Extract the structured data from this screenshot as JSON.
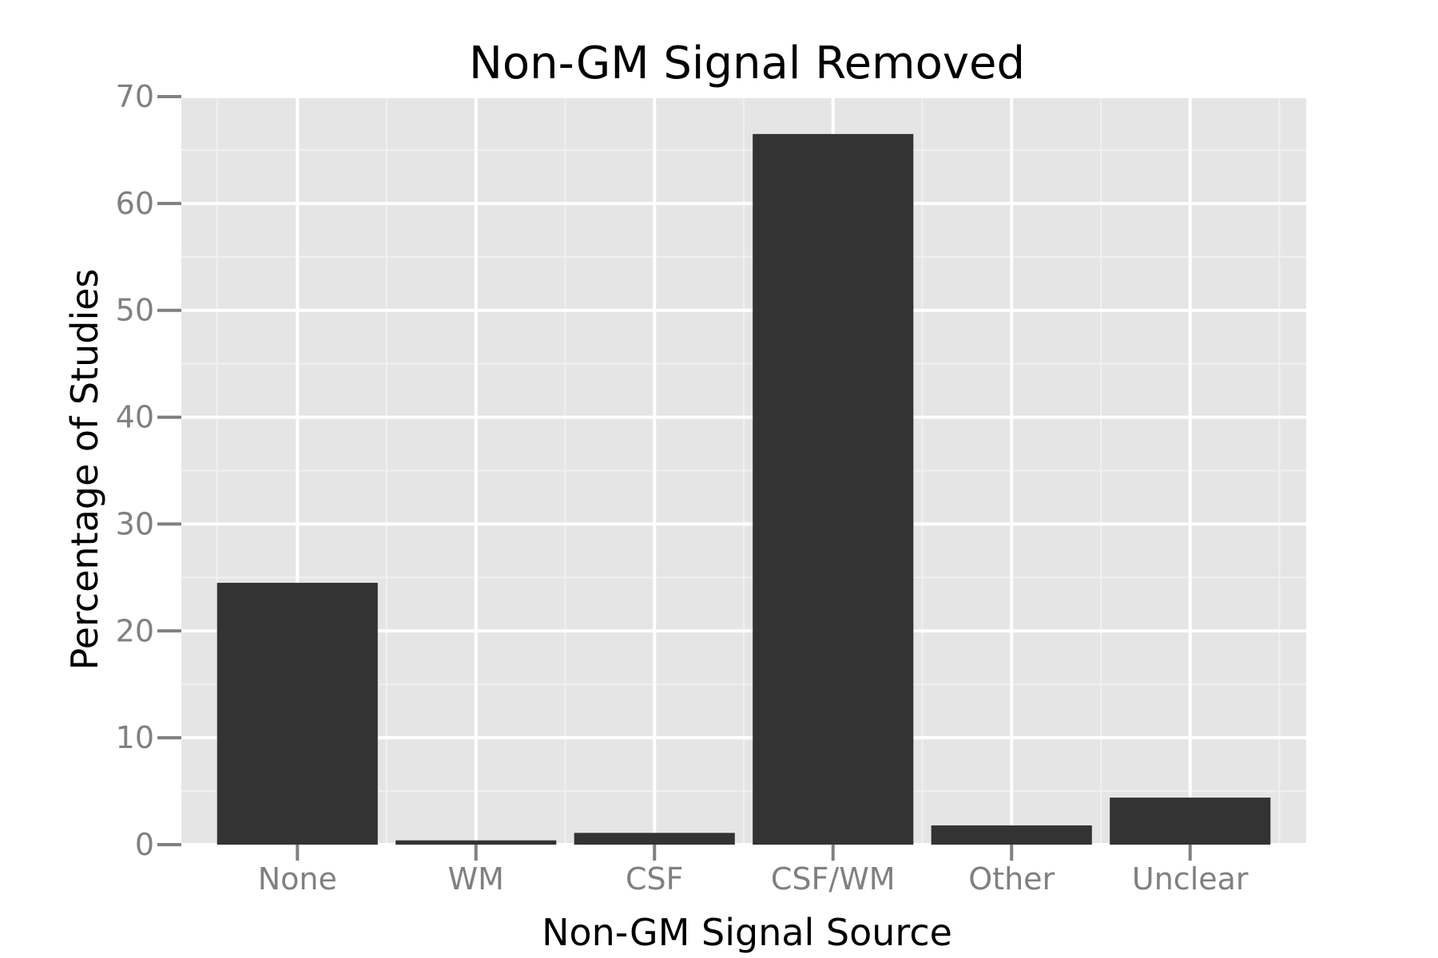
{
  "chart_data": {
    "type": "bar",
    "title": "Non-GM Signal Removed",
    "xlabel": "Non-GM Signal Source",
    "ylabel": "Percentage of Studies",
    "categories": [
      "None",
      "WM",
      "CSF",
      "CSF/WM",
      "Other",
      "Unclear"
    ],
    "values": [
      24.5,
      0.4,
      1.1,
      66.5,
      1.8,
      4.4
    ],
    "yticks": [
      0,
      10,
      20,
      30,
      40,
      50,
      60,
      70
    ],
    "ylim": [
      0,
      70
    ],
    "grid": true,
    "legend": "none",
    "colors": {
      "bar": "#333333",
      "panel": "#e5e5e5",
      "gridline": "#ffffff",
      "tick_label": "#808080"
    }
  }
}
